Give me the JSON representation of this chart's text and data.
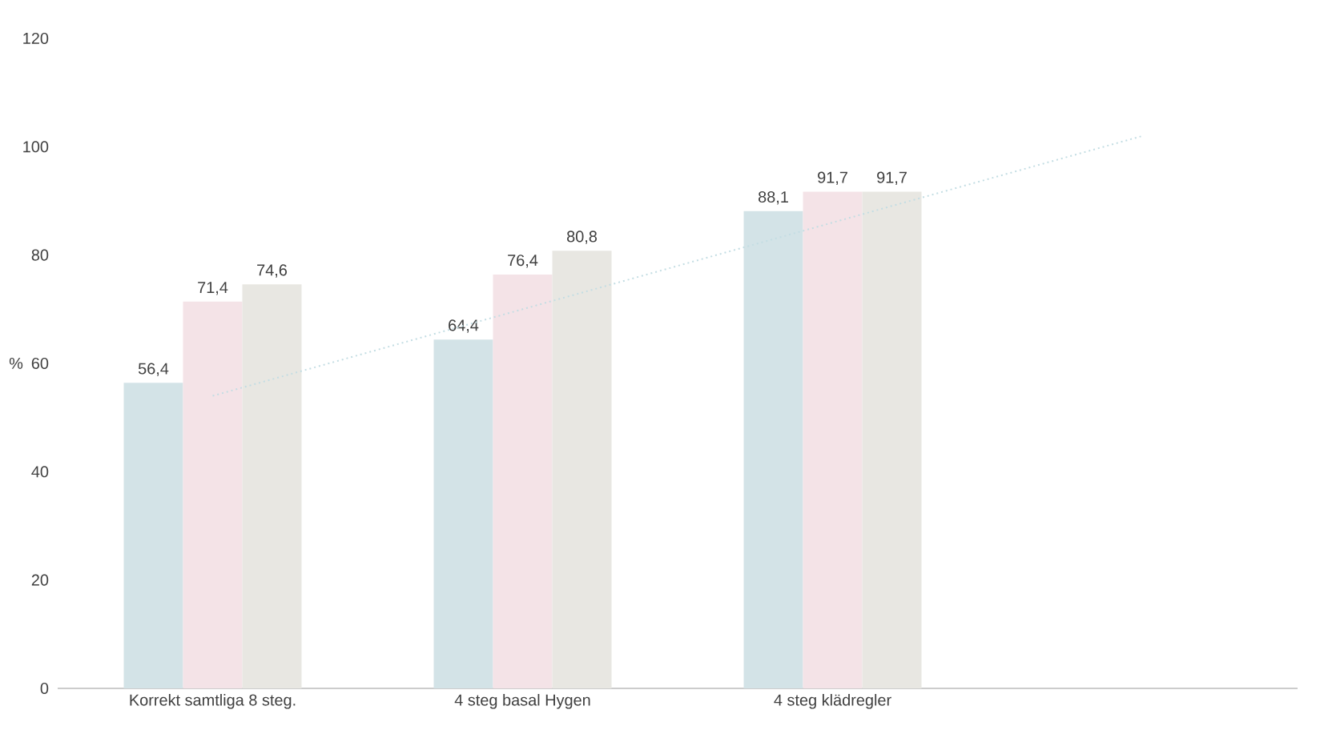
{
  "chart_data": {
    "type": "bar",
    "ylabel": "%",
    "categories": [
      "Korrekt samtliga 8 steg.",
      "4 steg basal Hygen",
      "4 steg klädregler",
      null
    ],
    "series": [
      {
        "color": "#d3e3e7",
        "values": [
          56.4,
          64.4,
          88.1,
          null
        ],
        "value_labels": [
          "56,4",
          "64,4",
          "88,1",
          null
        ]
      },
      {
        "color": "#f4e3e7",
        "values": [
          71.4,
          76.4,
          91.7,
          null
        ],
        "value_labels": [
          "71,4",
          "76,4",
          "91,7",
          null
        ]
      },
      {
        "color": "#e8e7e2",
        "values": [
          74.6,
          80.8,
          91.7,
          null
        ],
        "value_labels": [
          "74,6",
          "80,8",
          "91,7",
          null
        ]
      },
      {
        "type": "line",
        "line_style": "dotted",
        "color": "#c3dde3",
        "values": [
          54,
          70,
          86,
          102
        ]
      }
    ],
    "ylim": [
      0,
      120
    ],
    "yticks": [
      0,
      20,
      40,
      60,
      80,
      100,
      120
    ]
  }
}
